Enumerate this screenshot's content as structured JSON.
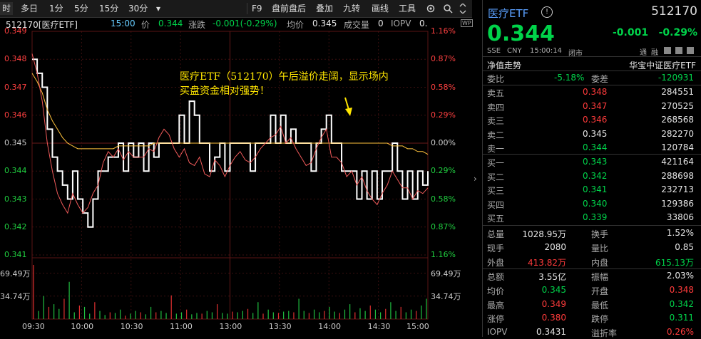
{
  "toolbar": {
    "left": [
      {
        "label": "时",
        "selected": true
      },
      {
        "label": "多日"
      },
      {
        "label": "1分"
      },
      {
        "label": "5分"
      },
      {
        "label": "15分"
      },
      {
        "label": "30分"
      },
      {
        "label": "▾"
      }
    ],
    "right": [
      {
        "label": "F9"
      },
      {
        "label": "盘前盘后"
      },
      {
        "label": "叠加"
      },
      {
        "label": "九转"
      },
      {
        "label": "画线"
      },
      {
        "label": "工具"
      }
    ]
  },
  "info": {
    "code_name": "512170[医疗ETF]",
    "time": "15:00",
    "price_label": "价",
    "price": "0.344",
    "change_label": "涨跌",
    "change": "-0.001(-0.29%)",
    "avg_label": "均价",
    "avg": "0.345",
    "vol_label": "成交量",
    "vol": "0",
    "iopv_label": "IOPV",
    "iopv": "0.",
    "wp_badge": "WP"
  },
  "chart_data": {
    "type": "line",
    "x_ticks": [
      "09:30",
      "10:00",
      "10:30",
      "11:00",
      "13:00",
      "13:30",
      "14:00",
      "14:30",
      "15:00"
    ],
    "y_left": [
      "0.349",
      "0.348",
      "0.347",
      "0.346",
      "0.345",
      "0.344",
      "0.343",
      "0.342",
      "0.341"
    ],
    "y_right": [
      "1.16%",
      "0.87%",
      "0.58%",
      "0.29%",
      "0.00%",
      "0.29%",
      "0.58%",
      "0.87%",
      "1.16%"
    ],
    "ylim": [
      0.341,
      0.349
    ],
    "prev_close": 0.345,
    "volume_ticks_left": [
      "69.49万",
      "34.74万"
    ],
    "volume_ticks_right": [
      "69.49万",
      "34.74万"
    ],
    "annotation": "医疗ETF（512170）午后溢价走阔，显示场内买盘资金相对强势！",
    "series": [
      {
        "color": "#ffffff",
        "values": [
          0.348,
          0.3475,
          0.347,
          0.3455,
          0.3445,
          0.344,
          0.3435,
          0.343,
          0.344,
          0.343,
          0.3425,
          0.342,
          0.343,
          0.344,
          0.344,
          0.3445,
          0.3445,
          0.345,
          0.344,
          0.345,
          0.3445,
          0.345,
          0.344,
          0.345,
          0.3445,
          0.345,
          0.345,
          0.345,
          0.345,
          0.346,
          0.345,
          0.3465,
          0.346,
          0.345,
          0.345,
          0.344,
          0.3445,
          0.345,
          0.344,
          0.345,
          0.345,
          0.345,
          0.345,
          0.344,
          0.345,
          0.345,
          0.345,
          0.346,
          0.345,
          0.346,
          0.345,
          0.3455,
          0.345,
          0.345,
          0.345,
          0.344,
          0.345,
          0.3455,
          0.346,
          0.345,
          0.345,
          0.344,
          0.344,
          0.344,
          0.343,
          0.344,
          0.343,
          0.344,
          0.343,
          0.344,
          0.344,
          0.345,
          0.344,
          0.343,
          0.344,
          0.343,
          0.344,
          0.3435,
          0.344
        ]
      },
      {
        "color": "#ffc23c",
        "values": [
          0.3475,
          0.3472,
          0.3468,
          0.3462,
          0.3458,
          0.3455,
          0.3452,
          0.345,
          0.3449,
          0.3448,
          0.3448,
          0.3448,
          0.3448,
          0.3448,
          0.3448,
          0.3448,
          0.3448,
          0.3449,
          0.3449,
          0.3449,
          0.3449,
          0.3449,
          0.3449,
          0.3449,
          0.345,
          0.345,
          0.345,
          0.345,
          0.345,
          0.345,
          0.345,
          0.345,
          0.345,
          0.345,
          0.345,
          0.345,
          0.345,
          0.345,
          0.345,
          0.345,
          0.345,
          0.345,
          0.345,
          0.345,
          0.345,
          0.345,
          0.345,
          0.345,
          0.345,
          0.345,
          0.345,
          0.345,
          0.345,
          0.345,
          0.345,
          0.345,
          0.345,
          0.345,
          0.345,
          0.345,
          0.345,
          0.345,
          0.345,
          0.345,
          0.345,
          0.345,
          0.345,
          0.345,
          0.345,
          0.345,
          0.345,
          0.3449,
          0.3449,
          0.3449,
          0.3448,
          0.3448,
          0.3447,
          0.3447,
          0.3446
        ]
      },
      {
        "color": "#f05a5a",
        "values": [
          0.3482,
          0.3475,
          0.3465,
          0.345,
          0.344,
          0.3432,
          0.3428,
          0.3425,
          0.3432,
          0.3428,
          0.3425,
          0.3427,
          0.3432,
          0.3435,
          0.3443,
          0.3447,
          0.3445,
          0.3448,
          0.3444,
          0.3447,
          0.3445,
          0.3445,
          0.3445,
          0.3448,
          0.3447,
          0.3452,
          0.3455,
          0.3453,
          0.3448,
          0.3445,
          0.3448,
          0.3443,
          0.3442,
          0.3445,
          0.3439,
          0.3438,
          0.3444,
          0.3442,
          0.3438,
          0.3442,
          0.3445,
          0.3447,
          0.3444,
          0.3443,
          0.3445,
          0.3448,
          0.345,
          0.3452,
          0.3453,
          0.3456,
          0.345,
          0.3452,
          0.3448,
          0.3445,
          0.3442,
          0.3443,
          0.3448,
          0.3452,
          0.3455,
          0.3445,
          0.3445,
          0.3443,
          0.3438,
          0.344,
          0.3435,
          0.3438,
          0.3433,
          0.343,
          0.3428,
          0.3432,
          0.3435,
          0.344,
          0.3437,
          0.3434,
          0.3434,
          0.343,
          0.3433,
          0.3432,
          0.3434
        ]
      }
    ],
    "volume": [
      80,
      12,
      34,
      18,
      22,
      15,
      30,
      55,
      10,
      20,
      18,
      8,
      25,
      12,
      6,
      10,
      9,
      14,
      5,
      8,
      12,
      10,
      7,
      18,
      10,
      12,
      9,
      35,
      8,
      10,
      14,
      7,
      9,
      8,
      12,
      10,
      22,
      9,
      8,
      11,
      10,
      12,
      15,
      9,
      25,
      8,
      14,
      10,
      9,
      11,
      12,
      10,
      30,
      12,
      9,
      14,
      10,
      12,
      18,
      11,
      9,
      14,
      22,
      10,
      16,
      12,
      20,
      14,
      10,
      15,
      25,
      12,
      18,
      10,
      14,
      12,
      20,
      30
    ]
  },
  "panel": {
    "title": "医疗ETF",
    "info_icon": "info-icon",
    "code": "512170",
    "price": "0.344",
    "change": "-0.001",
    "change_pct": "-0.29%",
    "exchange": "SSE",
    "currency": "CNY",
    "time": "15:00:14",
    "status": "闭市",
    "tong": "通",
    "rz": "融",
    "nav_label": "净值走势",
    "index_label": "华宝中证医疗ETF",
    "weibi_label": "委比",
    "weibi": "-5.18%",
    "weicha_label": "委差",
    "weicha": "-120931",
    "asks": [
      {
        "label": "卖五",
        "price": "0.348",
        "vol": "284551",
        "color": "red"
      },
      {
        "label": "卖四",
        "price": "0.347",
        "vol": "270525",
        "color": "red"
      },
      {
        "label": "卖三",
        "price": "0.346",
        "vol": "268568",
        "color": "red"
      },
      {
        "label": "卖二",
        "price": "0.345",
        "vol": "282270",
        "color": "white"
      },
      {
        "label": "卖一",
        "price": "0.344",
        "vol": "120784",
        "color": "green"
      }
    ],
    "bids": [
      {
        "label": "买一",
        "price": "0.343",
        "vol": "421164",
        "color": "green"
      },
      {
        "label": "买二",
        "price": "0.342",
        "vol": "288698",
        "color": "green"
      },
      {
        "label": "买三",
        "price": "0.341",
        "vol": "232713",
        "color": "green"
      },
      {
        "label": "买四",
        "price": "0.340",
        "vol": "129386",
        "color": "green"
      },
      {
        "label": "买五",
        "price": "0.339",
        "vol": "33806",
        "color": "green"
      }
    ],
    "stats1": [
      {
        "l1": "总量",
        "v1": "1028.95万",
        "c1": "white",
        "l2": "换手",
        "v2": "1.52%",
        "c2": "white"
      },
      {
        "l1": "现手",
        "v1": "2080",
        "c1": "white",
        "l2": "量比",
        "v2": "0.85",
        "c2": "white"
      },
      {
        "l1": "外盘",
        "v1": "413.82万",
        "c1": "red",
        "l2": "内盘",
        "v2": "615.13万",
        "c2": "green"
      }
    ],
    "stats2": [
      {
        "l1": "总额",
        "v1": "3.55亿",
        "c1": "white",
        "l2": "振幅",
        "v2": "2.03%",
        "c2": "white"
      },
      {
        "l1": "均价",
        "v1": "0.345",
        "c1": "green",
        "l2": "开盘",
        "v2": "0.348",
        "c2": "red"
      },
      {
        "l1": "最高",
        "v1": "0.349",
        "c1": "red",
        "l2": "最低",
        "v2": "0.342",
        "c2": "green"
      },
      {
        "l1": "涨停",
        "v1": "0.380",
        "c1": "red",
        "l2": "跌停",
        "v2": "0.311",
        "c2": "green"
      },
      {
        "l1": "IOPV",
        "v1": "0.3431",
        "c1": "white",
        "l2": "溢折率",
        "v2": "0.26%",
        "c2": "red"
      }
    ]
  }
}
